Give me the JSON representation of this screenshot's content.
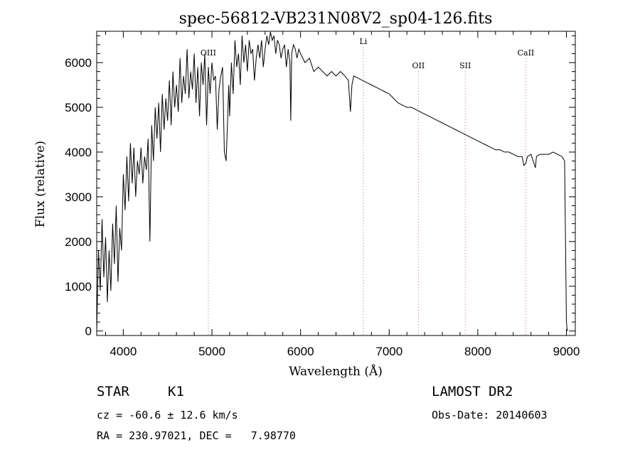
{
  "chart_data": {
    "type": "line",
    "title": "spec-56812-VB231N08V2_sp04-126.fits",
    "xlabel": "Wavelength (Å)",
    "ylabel": "Flux (relative)",
    "xlim": [
      3700,
      9100
    ],
    "ylim": [
      -100,
      6700
    ],
    "x_ticks": [
      4000,
      5000,
      6000,
      7000,
      8000,
      9000
    ],
    "y_ticks": [
      0,
      1000,
      2000,
      3000,
      4000,
      5000,
      6000
    ],
    "grid": false,
    "series": [
      {
        "name": "flux",
        "x": [
          3700,
          3720,
          3740,
          3760,
          3780,
          3800,
          3820,
          3840,
          3860,
          3880,
          3900,
          3920,
          3940,
          3960,
          3980,
          4000,
          4020,
          4040,
          4060,
          4080,
          4100,
          4120,
          4140,
          4160,
          4180,
          4200,
          4220,
          4240,
          4260,
          4280,
          4300,
          4320,
          4340,
          4360,
          4380,
          4400,
          4420,
          4440,
          4460,
          4480,
          4500,
          4520,
          4540,
          4560,
          4580,
          4600,
          4620,
          4640,
          4660,
          4680,
          4700,
          4720,
          4740,
          4760,
          4780,
          4800,
          4820,
          4840,
          4860,
          4880,
          4900,
          4920,
          4940,
          4960,
          4980,
          5000,
          5020,
          5040,
          5060,
          5080,
          5100,
          5120,
          5140,
          5160,
          5175,
          5190,
          5200,
          5220,
          5240,
          5260,
          5280,
          5300,
          5320,
          5340,
          5360,
          5380,
          5400,
          5420,
          5440,
          5460,
          5480,
          5500,
          5520,
          5540,
          5560,
          5580,
          5600,
          5620,
          5640,
          5660,
          5680,
          5700,
          5720,
          5740,
          5760,
          5780,
          5800,
          5820,
          5840,
          5860,
          5880,
          5890,
          5900,
          5920,
          5940,
          5960,
          5980,
          6000,
          6050,
          6100,
          6150,
          6200,
          6250,
          6300,
          6350,
          6400,
          6450,
          6500,
          6540,
          6563,
          6580,
          6600,
          6650,
          6700,
          6750,
          6800,
          6850,
          6900,
          6950,
          7000,
          7050,
          7100,
          7150,
          7200,
          7250,
          7300,
          7350,
          7400,
          7450,
          7500,
          7550,
          7600,
          7650,
          7700,
          7750,
          7800,
          7850,
          7900,
          7950,
          8000,
          8050,
          8100,
          8150,
          8200,
          8250,
          8300,
          8350,
          8400,
          8450,
          8500,
          8520,
          8542,
          8560,
          8600,
          8650,
          8662,
          8700,
          8750,
          8800,
          8850,
          8900,
          8950,
          8980,
          9000,
          9010
        ],
        "y": [
          0,
          1800,
          900,
          2500,
          1200,
          2100,
          650,
          1800,
          900,
          2400,
          1500,
          2800,
          1100,
          2300,
          1800,
          3500,
          2700,
          3900,
          2900,
          4200,
          3300,
          4100,
          3000,
          3800,
          3500,
          4100,
          3300,
          3900,
          3600,
          4300,
          2000,
          4600,
          3800,
          5000,
          4300,
          5100,
          4000,
          5300,
          4500,
          5200,
          4700,
          5600,
          4600,
          5800,
          5000,
          5500,
          4900,
          6100,
          5100,
          5700,
          5300,
          6300,
          5200,
          5800,
          5400,
          6200,
          5100,
          5900,
          4800,
          6000,
          5500,
          6200,
          4600,
          5900,
          5300,
          6000,
          5600,
          5700,
          4500,
          5400,
          5700,
          5900,
          4000,
          3800,
          4600,
          5500,
          4800,
          6000,
          5300,
          6500,
          5900,
          6200,
          5500,
          6600,
          6000,
          6400,
          5800,
          6500,
          6200,
          6300,
          5600,
          6100,
          6400,
          6100,
          6500,
          5900,
          6300,
          6600,
          6400,
          6700,
          6500,
          6600,
          6200,
          6500,
          6400,
          6100,
          6300,
          6400,
          5900,
          6300,
          6000,
          4700,
          6200,
          6400,
          6300,
          6100,
          6300,
          6200,
          6000,
          6100,
          5800,
          5900,
          5800,
          5700,
          5800,
          5700,
          5800,
          5700,
          5600,
          4900,
          5500,
          5700,
          5650,
          5600,
          5550,
          5500,
          5450,
          5400,
          5350,
          5300,
          5200,
          5100,
          5050,
          5000,
          5000,
          4950,
          4900,
          4850,
          4800,
          4750,
          4700,
          4650,
          4600,
          4550,
          4500,
          4450,
          4400,
          4350,
          4300,
          4250,
          4200,
          4150,
          4100,
          4050,
          4050,
          4000,
          4000,
          3950,
          3900,
          3900,
          3700,
          3750,
          3900,
          3950,
          3650,
          3900,
          3950,
          3950,
          3950,
          4000,
          3950,
          3900,
          3800,
          200,
          0
        ]
      }
    ],
    "lines": [
      {
        "label": "OIII",
        "x": 4959
      },
      {
        "label": "Li",
        "x": 6708
      },
      {
        "label": "OII",
        "x": 7330
      },
      {
        "label": "SII",
        "x": 7858
      },
      {
        "label": "CaII",
        "x": 8542
      }
    ]
  },
  "info": {
    "object_class": "STAR",
    "subclass": "K1",
    "survey": "LAMOST DR2",
    "redshift": "cz = -60.6 ± 12.6 km/s",
    "obs_date": "Obs-Date: 20140603",
    "coords": "RA = 230.97021, DEC =   7.98770"
  },
  "colors": {
    "line_marker": "#e06666",
    "spectrum": "#000000"
  }
}
